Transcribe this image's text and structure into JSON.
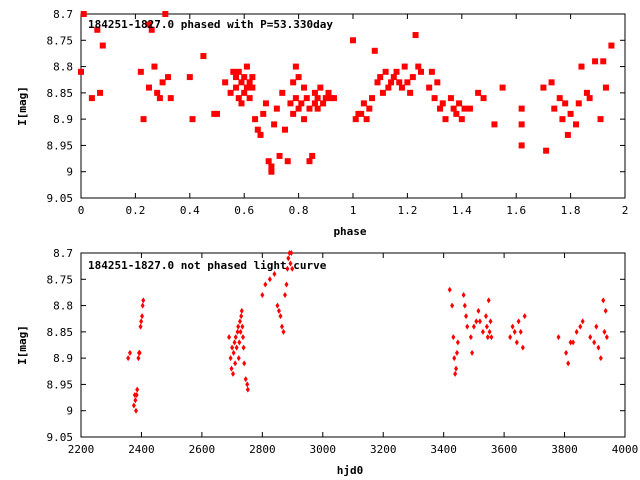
{
  "chart_data": [
    {
      "type": "scatter",
      "title": "184251-1827.0 phased with P=53.330day",
      "xlabel": "phase",
      "ylabel": "I[mag]",
      "xlim": [
        0,
        2
      ],
      "ylim": [
        8.7,
        9.05
      ],
      "y_inverted": true,
      "x_ticks": [
        "0",
        "0.2",
        "0.4",
        "0.6",
        "0.8",
        "1",
        "1.2",
        "1.4",
        "1.6",
        "1.8",
        "2"
      ],
      "y_ticks": [
        "8.7",
        "8.75",
        "8.8",
        "8.85",
        "8.9",
        "8.95",
        "9",
        "9.05"
      ],
      "marker_color": "#ff0000",
      "points": [
        [
          0.0,
          8.81
        ],
        [
          0.01,
          8.7
        ],
        [
          0.04,
          8.86
        ],
        [
          0.06,
          8.73
        ],
        [
          0.07,
          8.85
        ],
        [
          0.08,
          8.76
        ],
        [
          0.22,
          8.81
        ],
        [
          0.23,
          8.9
        ],
        [
          0.25,
          8.72
        ],
        [
          0.25,
          8.84
        ],
        [
          0.26,
          8.73
        ],
        [
          0.27,
          8.8
        ],
        [
          0.28,
          8.85
        ],
        [
          0.29,
          8.86
        ],
        [
          0.3,
          8.83
        ],
        [
          0.31,
          8.7
        ],
        [
          0.32,
          8.82
        ],
        [
          0.33,
          8.86
        ],
        [
          0.4,
          8.82
        ],
        [
          0.41,
          8.9
        ],
        [
          0.45,
          8.78
        ],
        [
          0.49,
          8.89
        ],
        [
          0.5,
          8.89
        ],
        [
          0.53,
          8.83
        ],
        [
          0.55,
          8.85
        ],
        [
          0.56,
          8.81
        ],
        [
          0.57,
          8.82
        ],
        [
          0.57,
          8.84
        ],
        [
          0.58,
          8.86
        ],
        [
          0.58,
          8.81
        ],
        [
          0.59,
          8.83
        ],
        [
          0.59,
          8.87
        ],
        [
          0.6,
          8.85
        ],
        [
          0.6,
          8.82
        ],
        [
          0.61,
          8.84
        ],
        [
          0.61,
          8.8
        ],
        [
          0.62,
          8.86
        ],
        [
          0.62,
          8.83
        ],
        [
          0.63,
          8.84
        ],
        [
          0.63,
          8.82
        ],
        [
          0.64,
          8.9
        ],
        [
          0.65,
          8.92
        ],
        [
          0.66,
          8.93
        ],
        [
          0.67,
          8.89
        ],
        [
          0.68,
          8.87
        ],
        [
          0.69,
          8.98
        ],
        [
          0.7,
          8.99
        ],
        [
          0.7,
          9.0
        ],
        [
          0.71,
          8.91
        ],
        [
          0.72,
          8.88
        ],
        [
          0.73,
          8.97
        ],
        [
          0.74,
          8.85
        ],
        [
          0.75,
          8.92
        ],
        [
          0.76,
          8.98
        ],
        [
          0.77,
          8.87
        ],
        [
          0.78,
          8.89
        ],
        [
          0.78,
          8.83
        ],
        [
          0.79,
          8.8
        ],
        [
          0.79,
          8.86
        ],
        [
          0.8,
          8.82
        ],
        [
          0.8,
          8.88
        ],
        [
          0.81,
          8.87
        ],
        [
          0.82,
          8.9
        ],
        [
          0.82,
          8.84
        ],
        [
          0.83,
          8.86
        ],
        [
          0.84,
          8.88
        ],
        [
          0.84,
          8.98
        ],
        [
          0.85,
          8.97
        ],
        [
          0.86,
          8.85
        ],
        [
          0.86,
          8.87
        ],
        [
          0.87,
          8.86
        ],
        [
          0.87,
          8.88
        ],
        [
          0.88,
          8.84
        ],
        [
          0.89,
          8.87
        ],
        [
          0.9,
          8.86
        ],
        [
          0.91,
          8.85
        ],
        [
          0.92,
          8.86
        ],
        [
          0.93,
          8.86
        ],
        [
          1.0,
          8.75
        ],
        [
          1.01,
          8.9
        ],
        [
          1.02,
          8.89
        ],
        [
          1.03,
          8.89
        ],
        [
          1.04,
          8.87
        ],
        [
          1.05,
          8.9
        ],
        [
          1.06,
          8.88
        ],
        [
          1.07,
          8.86
        ],
        [
          1.08,
          8.77
        ],
        [
          1.09,
          8.83
        ],
        [
          1.1,
          8.82
        ],
        [
          1.11,
          8.85
        ],
        [
          1.12,
          8.81
        ],
        [
          1.13,
          8.84
        ],
        [
          1.14,
          8.83
        ],
        [
          1.15,
          8.82
        ],
        [
          1.16,
          8.81
        ],
        [
          1.17,
          8.83
        ],
        [
          1.18,
          8.84
        ],
        [
          1.19,
          8.8
        ],
        [
          1.2,
          8.83
        ],
        [
          1.21,
          8.85
        ],
        [
          1.22,
          8.82
        ],
        [
          1.23,
          8.74
        ],
        [
          1.24,
          8.8
        ],
        [
          1.25,
          8.81
        ],
        [
          1.28,
          8.84
        ],
        [
          1.29,
          8.81
        ],
        [
          1.3,
          8.86
        ],
        [
          1.31,
          8.83
        ],
        [
          1.32,
          8.88
        ],
        [
          1.33,
          8.87
        ],
        [
          1.34,
          8.9
        ],
        [
          1.36,
          8.86
        ],
        [
          1.37,
          8.88
        ],
        [
          1.38,
          8.89
        ],
        [
          1.39,
          8.87
        ],
        [
          1.4,
          8.9
        ],
        [
          1.41,
          8.88
        ],
        [
          1.43,
          8.88
        ],
        [
          1.46,
          8.85
        ],
        [
          1.48,
          8.86
        ],
        [
          1.52,
          8.91
        ],
        [
          1.55,
          8.84
        ],
        [
          1.62,
          8.88
        ],
        [
          1.62,
          8.91
        ],
        [
          1.62,
          8.95
        ],
        [
          1.7,
          8.84
        ],
        [
          1.71,
          8.96
        ],
        [
          1.73,
          8.83
        ],
        [
          1.74,
          8.88
        ],
        [
          1.76,
          8.86
        ],
        [
          1.77,
          8.9
        ],
        [
          1.78,
          8.87
        ],
        [
          1.79,
          8.93
        ],
        [
          1.8,
          8.89
        ],
        [
          1.82,
          8.91
        ],
        [
          1.83,
          8.87
        ],
        [
          1.84,
          8.8
        ],
        [
          1.86,
          8.85
        ],
        [
          1.87,
          8.86
        ],
        [
          1.89,
          8.79
        ],
        [
          1.91,
          8.9
        ],
        [
          1.92,
          8.79
        ],
        [
          1.93,
          8.84
        ],
        [
          1.95,
          8.76
        ]
      ]
    },
    {
      "type": "scatter",
      "title": "184251-1827.0 not phased light curve",
      "xlabel": "hjd0",
      "ylabel": "I[mag]",
      "xlim": [
        2200,
        4000
      ],
      "ylim": [
        8.7,
        9.05
      ],
      "y_inverted": true,
      "x_ticks": [
        "2200",
        "2400",
        "2600",
        "2800",
        "3000",
        "3200",
        "3400",
        "3600",
        "3800",
        "4000"
      ],
      "y_ticks": [
        "8.7",
        "8.75",
        "8.8",
        "8.85",
        "8.9",
        "8.95",
        "9",
        "9.05"
      ],
      "marker_color": "#ff0000",
      "points": [
        [
          2356,
          8.9
        ],
        [
          2362,
          8.89
        ],
        [
          2375,
          8.99
        ],
        [
          2378,
          8.97
        ],
        [
          2380,
          8.98
        ],
        [
          2382,
          9.0
        ],
        [
          2384,
          8.97
        ],
        [
          2386,
          8.96
        ],
        [
          2390,
          8.9
        ],
        [
          2392,
          8.89
        ],
        [
          2394,
          8.89
        ],
        [
          2397,
          8.84
        ],
        [
          2399,
          8.83
        ],
        [
          2402,
          8.82
        ],
        [
          2404,
          8.8
        ],
        [
          2406,
          8.79
        ],
        [
          2690,
          8.86
        ],
        [
          2695,
          8.9
        ],
        [
          2698,
          8.92
        ],
        [
          2700,
          8.88
        ],
        [
          2703,
          8.93
        ],
        [
          2705,
          8.89
        ],
        [
          2708,
          8.87
        ],
        [
          2710,
          8.91
        ],
        [
          2712,
          8.86
        ],
        [
          2715,
          8.88
        ],
        [
          2718,
          8.85
        ],
        [
          2720,
          8.84
        ],
        [
          2722,
          8.9
        ],
        [
          2724,
          8.87
        ],
        [
          2726,
          8.83
        ],
        [
          2728,
          8.85
        ],
        [
          2730,
          8.82
        ],
        [
          2732,
          8.81
        ],
        [
          2734,
          8.84
        ],
        [
          2736,
          8.86
        ],
        [
          2738,
          8.88
        ],
        [
          2740,
          8.91
        ],
        [
          2745,
          8.94
        ],
        [
          2750,
          8.95
        ],
        [
          2752,
          8.96
        ],
        [
          2800,
          8.78
        ],
        [
          2810,
          8.76
        ],
        [
          2825,
          8.75
        ],
        [
          2840,
          8.74
        ],
        [
          2850,
          8.8
        ],
        [
          2855,
          8.81
        ],
        [
          2860,
          8.82
        ],
        [
          2865,
          8.84
        ],
        [
          2870,
          8.85
        ],
        [
          2875,
          8.78
        ],
        [
          2880,
          8.76
        ],
        [
          2883,
          8.73
        ],
        [
          2886,
          8.71
        ],
        [
          2890,
          8.7
        ],
        [
          2893,
          8.72
        ],
        [
          2896,
          8.7
        ],
        [
          2899,
          8.73
        ],
        [
          3420,
          8.77
        ],
        [
          3428,
          8.8
        ],
        [
          3432,
          8.86
        ],
        [
          3435,
          8.9
        ],
        [
          3438,
          8.93
        ],
        [
          3441,
          8.92
        ],
        [
          3444,
          8.89
        ],
        [
          3447,
          8.87
        ],
        [
          3466,
          8.78
        ],
        [
          3470,
          8.8
        ],
        [
          3474,
          8.82
        ],
        [
          3478,
          8.84
        ],
        [
          3490,
          8.86
        ],
        [
          3494,
          8.89
        ],
        [
          3500,
          8.84
        ],
        [
          3508,
          8.83
        ],
        [
          3515,
          8.81
        ],
        [
          3520,
          8.83
        ],
        [
          3530,
          8.85
        ],
        [
          3540,
          8.82
        ],
        [
          3543,
          8.84
        ],
        [
          3546,
          8.86
        ],
        [
          3549,
          8.79
        ],
        [
          3552,
          8.85
        ],
        [
          3555,
          8.83
        ],
        [
          3558,
          8.86
        ],
        [
          3620,
          8.86
        ],
        [
          3628,
          8.84
        ],
        [
          3635,
          8.85
        ],
        [
          3642,
          8.87
        ],
        [
          3648,
          8.83
        ],
        [
          3655,
          8.85
        ],
        [
          3662,
          8.88
        ],
        [
          3668,
          8.82
        ],
        [
          3780,
          8.86
        ],
        [
          3805,
          8.89
        ],
        [
          3812,
          8.91
        ],
        [
          3820,
          8.87
        ],
        [
          3828,
          8.87
        ],
        [
          3840,
          8.85
        ],
        [
          3852,
          8.84
        ],
        [
          3860,
          8.83
        ],
        [
          3885,
          8.86
        ],
        [
          3898,
          8.87
        ],
        [
          3905,
          8.84
        ],
        [
          3912,
          8.88
        ],
        [
          3920,
          8.9
        ],
        [
          3928,
          8.79
        ],
        [
          3932,
          8.85
        ],
        [
          3936,
          8.81
        ],
        [
          3940,
          8.86
        ]
      ]
    }
  ]
}
